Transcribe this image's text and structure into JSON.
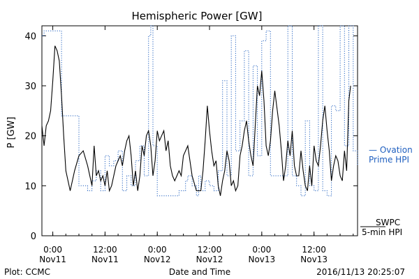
{
  "chart_data": {
    "type": "line",
    "title": "Hemispheric Power [GW]",
    "ylabel": "P [GW]",
    "xlabel": "Date and Time",
    "ylim": [
      0,
      42
    ],
    "yticks": [
      0,
      10,
      20,
      30,
      40
    ],
    "xlim": [
      "2016-11-10T21:30",
      "2016-11-13T22:00"
    ],
    "xticks": [
      {
        "t": "2016-11-11T00:00",
        "line1": "0:00",
        "line2": "Nov11"
      },
      {
        "t": "2016-11-11T12:00",
        "line1": "12:00",
        "line2": "Nov11"
      },
      {
        "t": "2016-11-12T00:00",
        "line1": "0:00",
        "line2": "Nov12"
      },
      {
        "t": "2016-11-12T12:00",
        "line1": "12:00",
        "line2": "Nov12"
      },
      {
        "t": "2016-11-13T00:00",
        "line1": "0:00",
        "line2": "Nov13"
      },
      {
        "t": "2016-11-13T12:00",
        "line1": "12:00",
        "line2": "Nov13"
      }
    ],
    "series": [
      {
        "name": "SWPC 5-min HPI",
        "label_line1": "SWPC",
        "label_line2": "5-min HPI",
        "color": "#000000",
        "style": "solid",
        "x": [
          "2016-11-10T21:30",
          "2016-11-10T22:00",
          "2016-11-10T22:30",
          "2016-11-10T23:00",
          "2016-11-10T23:30",
          "2016-11-11T00:00",
          "2016-11-11T00:30",
          "2016-11-11T01:00",
          "2016-11-11T01:30",
          "2016-11-11T02:00",
          "2016-11-11T02:30",
          "2016-11-11T03:00",
          "2016-11-11T04:00",
          "2016-11-11T05:00",
          "2016-11-11T06:00",
          "2016-11-11T07:00",
          "2016-11-11T08:00",
          "2016-11-11T09:00",
          "2016-11-11T09:30",
          "2016-11-11T10:00",
          "2016-11-11T10:30",
          "2016-11-11T11:00",
          "2016-11-11T11:30",
          "2016-11-11T12:00",
          "2016-11-11T12:30",
          "2016-11-11T13:00",
          "2016-11-11T13:30",
          "2016-11-11T14:00",
          "2016-11-11T14:30",
          "2016-11-11T15:00",
          "2016-11-11T15:30",
          "2016-11-11T16:00",
          "2016-11-11T16:30",
          "2016-11-11T17:00",
          "2016-11-11T17:30",
          "2016-11-11T18:00",
          "2016-11-11T18:30",
          "2016-11-11T19:00",
          "2016-11-11T19:30",
          "2016-11-11T20:00",
          "2016-11-11T20:30",
          "2016-11-11T21:00",
          "2016-11-11T21:30",
          "2016-11-11T22:00",
          "2016-11-11T22:30",
          "2016-11-11T23:00",
          "2016-11-11T23:30",
          "2016-11-12T00:00",
          "2016-11-12T00:30",
          "2016-11-12T01:00",
          "2016-11-12T01:30",
          "2016-11-12T02:00",
          "2016-11-12T02:30",
          "2016-11-12T03:00",
          "2016-11-12T03:30",
          "2016-11-12T04:00",
          "2016-11-12T04:30",
          "2016-11-12T05:00",
          "2016-11-12T05:30",
          "2016-11-12T06:00",
          "2016-11-12T07:00",
          "2016-11-12T08:00",
          "2016-11-12T09:00",
          "2016-11-12T10:00",
          "2016-11-12T10:30",
          "2016-11-12T11:00",
          "2016-11-12T11:30",
          "2016-11-12T12:00",
          "2016-11-12T12:30",
          "2016-11-12T13:00",
          "2016-11-12T13:30",
          "2016-11-12T14:00",
          "2016-11-12T14:30",
          "2016-11-12T15:00",
          "2016-11-12T15:30",
          "2016-11-12T16:00",
          "2016-11-12T16:30",
          "2016-11-12T17:00",
          "2016-11-12T17:30",
          "2016-11-12T18:00",
          "2016-11-12T18:30",
          "2016-11-12T19:00",
          "2016-11-12T19:30",
          "2016-11-12T20:00",
          "2016-11-12T20:30",
          "2016-11-12T21:00",
          "2016-11-12T21:30",
          "2016-11-12T22:00",
          "2016-11-12T22:30",
          "2016-11-12T23:00",
          "2016-11-12T23:30",
          "2016-11-13T00:00",
          "2016-11-13T00:30",
          "2016-11-13T01:00",
          "2016-11-13T01:30",
          "2016-11-13T02:00",
          "2016-11-13T02:30",
          "2016-11-13T03:00",
          "2016-11-13T04:00",
          "2016-11-13T04:30",
          "2016-11-13T05:00",
          "2016-11-13T05:30",
          "2016-11-13T06:00",
          "2016-11-13T06:30",
          "2016-11-13T07:00",
          "2016-11-13T07:30",
          "2016-11-13T08:00",
          "2016-11-13T08:30",
          "2016-11-13T09:00",
          "2016-11-13T09:30",
          "2016-11-13T10:00",
          "2016-11-13T10:30",
          "2016-11-13T11:00",
          "2016-11-13T11:30",
          "2016-11-13T12:00",
          "2016-11-13T12:30",
          "2016-11-13T13:00",
          "2016-11-13T13:30",
          "2016-11-13T14:00",
          "2016-11-13T14:30",
          "2016-11-13T15:00",
          "2016-11-13T15:30",
          "2016-11-13T16:00",
          "2016-11-13T16:30",
          "2016-11-13T17:00",
          "2016-11-13T17:30",
          "2016-11-13T18:00",
          "2016-11-13T18:30",
          "2016-11-13T19:00",
          "2016-11-13T19:30",
          "2016-11-13T20:00",
          "2016-11-13T20:25"
        ],
        "y": [
          22,
          18,
          22,
          23,
          25,
          31,
          38,
          37,
          35,
          28,
          20,
          13,
          9,
          13,
          16,
          17,
          14,
          10,
          18,
          12,
          13,
          11,
          12,
          10,
          13,
          9,
          10,
          12,
          14,
          15,
          16,
          14,
          17,
          19,
          20,
          16,
          10,
          13,
          9,
          12,
          18,
          16,
          20,
          21,
          18,
          12,
          15,
          21,
          19,
          20,
          21,
          17,
          19,
          14,
          12,
          11,
          12,
          13,
          12,
          16,
          18,
          12,
          9,
          9,
          13,
          19,
          26,
          21,
          17,
          14,
          15,
          10,
          8,
          11,
          13,
          17,
          15,
          10,
          11,
          9,
          10,
          16,
          18,
          21,
          23,
          19,
          16,
          14,
          22,
          30,
          28,
          33,
          27,
          18,
          16,
          19,
          25,
          29,
          22,
          17,
          11,
          14,
          19,
          16,
          21,
          14,
          12,
          12,
          17,
          13,
          10,
          9,
          14,
          10,
          18,
          15,
          14,
          18,
          23,
          26,
          21,
          17,
          11,
          14,
          16,
          15,
          12,
          11,
          17,
          13,
          27,
          30
        ]
      },
      {
        "name": "Ovation Prime HPI",
        "label_line1": "— Ovation",
        "label_line2": "Prime HPI",
        "color": "#1f5fbf",
        "style": "dotted",
        "x": [
          "2016-11-10T21:30",
          "2016-11-10T22:00",
          "2016-11-11T02:00",
          "2016-11-11T06:00",
          "2016-11-11T08:00",
          "2016-11-11T09:00",
          "2016-11-11T10:00",
          "2016-11-11T11:00",
          "2016-11-11T12:00",
          "2016-11-11T13:00",
          "2016-11-11T14:00",
          "2016-11-11T15:00",
          "2016-11-11T16:00",
          "2016-11-11T17:00",
          "2016-11-11T18:00",
          "2016-11-11T19:00",
          "2016-11-11T20:00",
          "2016-11-11T21:00",
          "2016-11-11T22:00",
          "2016-11-11T22:30",
          "2016-11-11T23:00",
          "2016-11-12T00:00",
          "2016-11-12T03:00",
          "2016-11-12T05:00",
          "2016-11-12T06:00",
          "2016-11-12T06:30",
          "2016-11-12T07:00",
          "2016-11-12T08:00",
          "2016-11-12T09:00",
          "2016-11-12T09:30",
          "2016-11-12T10:00",
          "2016-11-12T11:00",
          "2016-11-12T12:00",
          "2016-11-12T13:00",
          "2016-11-12T14:00",
          "2016-11-12T15:00",
          "2016-11-12T16:00",
          "2016-11-12T17:00",
          "2016-11-12T18:00",
          "2016-11-12T19:00",
          "2016-11-12T20:00",
          "2016-11-12T21:00",
          "2016-11-12T22:00",
          "2016-11-12T23:00",
          "2016-11-13T00:00",
          "2016-11-13T01:00",
          "2016-11-13T02:00",
          "2016-11-13T03:00",
          "2016-11-13T04:00",
          "2016-11-13T05:00",
          "2016-11-13T06:00",
          "2016-11-13T07:00",
          "2016-11-13T08:00",
          "2016-11-13T09:00",
          "2016-11-13T10:00",
          "2016-11-13T11:00",
          "2016-11-13T12:00",
          "2016-11-13T13:00",
          "2016-11-13T14:00",
          "2016-11-13T15:00",
          "2016-11-13T16:00",
          "2016-11-13T17:00",
          "2016-11-13T18:00",
          "2016-11-13T19:00",
          "2016-11-13T20:00",
          "2016-11-13T21:00",
          "2016-11-13T22:00"
        ],
        "y": [
          40,
          41,
          24,
          10,
          9,
          11,
          13,
          9,
          16,
          14,
          15,
          17,
          9,
          12,
          10,
          15,
          18,
          12,
          40,
          42,
          18,
          8,
          8,
          9,
          9,
          11,
          12,
          10,
          8,
          12,
          9,
          11,
          10,
          9,
          13,
          31,
          12,
          40,
          17,
          23,
          37,
          12,
          34,
          16,
          39,
          41,
          12,
          12,
          12,
          12,
          42,
          12,
          10,
          8,
          23,
          10,
          9,
          42,
          9,
          8,
          26,
          25,
          42,
          18,
          42,
          17,
          14
        ]
      }
    ],
    "footer_left": "Plot: CCMC",
    "footer_right": "2016/11/13 20:25:07"
  }
}
